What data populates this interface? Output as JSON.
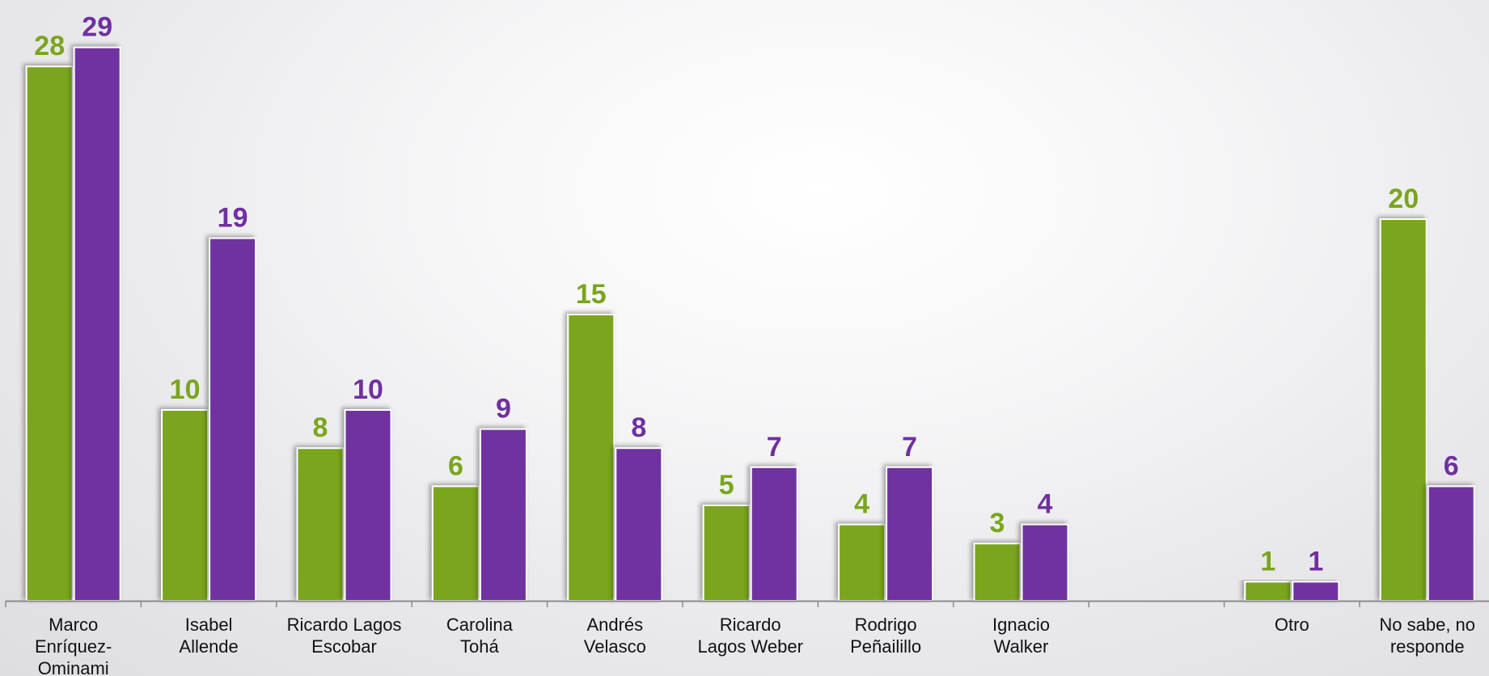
{
  "chart_data": {
    "type": "bar",
    "categories": [
      "Marco Enríquez-Ominami",
      "Isabel Allende",
      "Ricardo Lagos Escobar",
      "Carolina Tohá",
      "Andrés Velasco",
      "Ricardo Lagos Weber",
      "Rodrigo Peñailillo",
      "Ignacio Walker",
      "",
      "Otro",
      "No sabe, no responde"
    ],
    "category_lines": [
      [
        "Marco",
        "Enríquez-",
        "Ominami"
      ],
      [
        "Isabel",
        "Allende"
      ],
      [
        "Ricardo Lagos",
        "Escobar"
      ],
      [
        "Carolina",
        "Tohá"
      ],
      [
        "Andrés",
        "Velasco"
      ],
      [
        "Ricardo",
        "Lagos Weber"
      ],
      [
        "Rodrigo",
        "Peñailillo"
      ],
      [
        "Ignacio",
        "Walker"
      ],
      [],
      [
        "Otro"
      ],
      [
        "No sabe, no",
        "responde"
      ]
    ],
    "series": [
      {
        "values": [
          28,
          10,
          8,
          6,
          15,
          5,
          4,
          3,
          null,
          1,
          20
        ],
        "color": "#7aa51e"
      },
      {
        "values": [
          29,
          19,
          10,
          9,
          8,
          7,
          7,
          4,
          null,
          1,
          6
        ],
        "color": "#7030a0"
      }
    ],
    "title": "",
    "xlabel": "",
    "ylabel": "",
    "ylim": [
      0,
      30
    ],
    "grid": false,
    "legend": "none",
    "data_labels": true
  }
}
